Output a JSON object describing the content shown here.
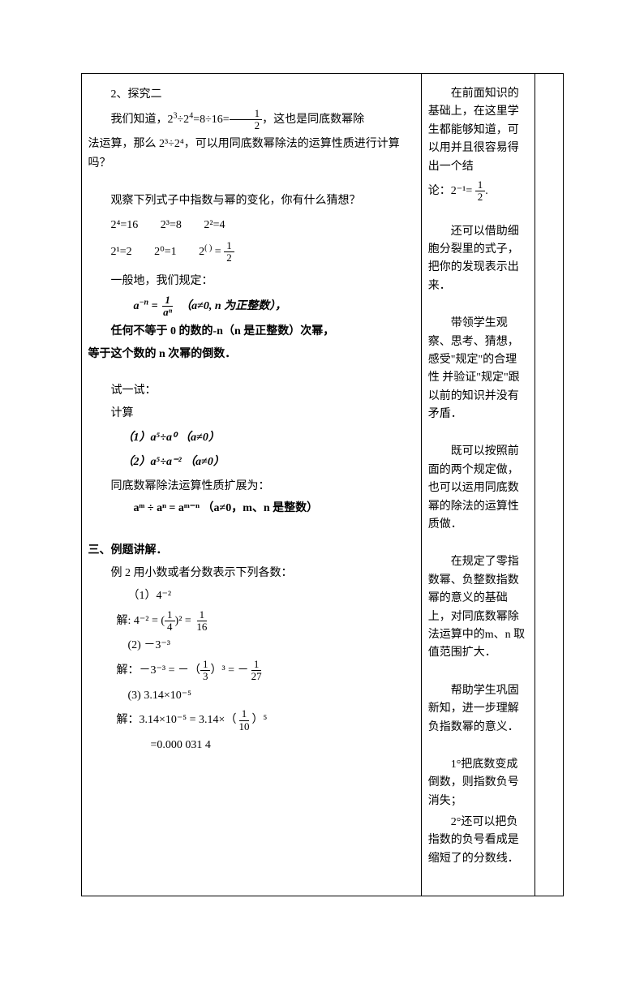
{
  "main": {
    "h1": "2、探究二",
    "p1_a": "我们知道，2",
    "p1_b": "÷2",
    "p1_c": "=8÷16=",
    "p1_d": "，这也是同底数幂除",
    "p2": "法运算，那么 2³÷2⁴，可以用同底数幂除法的运算性质进行计算吗？",
    "p3": "观察下列式子中指数与幂的变化，你有什么猜想？",
    "eq1_1": "2⁴=16",
    "eq1_2": "2³=8",
    "eq1_3": "2²=4",
    "eq2_1": "2¹=2",
    "eq2_2": "2⁰=1",
    "eq2_3a": "2",
    "eq2_3b": "( )",
    "eq2_3c": " = ",
    "p4": "一般地，我们规定：",
    "rule_a": "a",
    "rule_b": "−n",
    "rule_c": " = ",
    "rule_d": "（a≠0, n 为正整数），",
    "p5": "任何不等于 0 的数的-n（n 是正整数）次幂，",
    "p6": "等于这个数的 n 次幂的倒数．",
    "p7": "试一试：",
    "p8": "计算",
    "ex1": "（1）a⁵÷a⁰    （a≠0）",
    "ex2": "（2）a⁵÷a⁻²   （a≠0）",
    "p9": "同底数幂除法运算性质扩展为：",
    "ext_rule": "aᵐ ÷ aⁿ = aᵐ⁻ⁿ   （a≠0，m、n 是整数）",
    "sec3": "三、例题讲解．",
    "ex_title": "例 2   用小数或者分数表示下列各数：",
    "item1": "（1）4⁻²",
    "sol1_a": "解: 4⁻² = (",
    "sol1_b": ")² = ",
    "item2": "(2)  －3⁻³",
    "sol2_a": "解：－3⁻³ = －（",
    "sol2_b": "）³ = －",
    "item3": "(3) 3.14×10⁻⁵",
    "sol3_a": "解：3.14×10⁻⁵ = 3.14×（",
    "sol3_b": "）⁵",
    "sol3_c": "=0.000 031 4"
  },
  "notes": {
    "n1_a": "在前面知识的基础上，在这里学生都能够知道，可以用并且很容易得出一个结",
    "n1_b": "论：2⁻¹= ",
    "n2": "还可以借助细胞分裂里的式子，把你的发现表示出来．",
    "n3": "带领学生观察、思考、猜想，感受\"规定\"的合理性 并验证\"规定\"跟以前的知识并没有矛盾．",
    "n4": "既可以按照前面的两个规定做，也可以运用同底数幂的除法的运算性质做．",
    "n5": "在规定了零指数幂、负整数指数幂的意义的基础上，对同底数幂除法运算中的m、n 取值范围扩大．",
    "n6": "帮助学生巩固新知，进一步理解负指数幂的意义．",
    "n7": "1°把底数变成倒数，则指数负号消失；",
    "n8": "2°还可以把负指数的负号看成是缩短了的分数线．"
  },
  "fracs": {
    "half_n": "1",
    "half_d": "2",
    "an_n": "1",
    "an_d": "aⁿ",
    "q_n": "1",
    "q_d": "4",
    "s_n": "1",
    "s_d": "16",
    "t_n": "1",
    "t_d": "3",
    "tw_n": "1",
    "tw_d": "27",
    "tn_n": "1",
    "tn_d": "10"
  }
}
